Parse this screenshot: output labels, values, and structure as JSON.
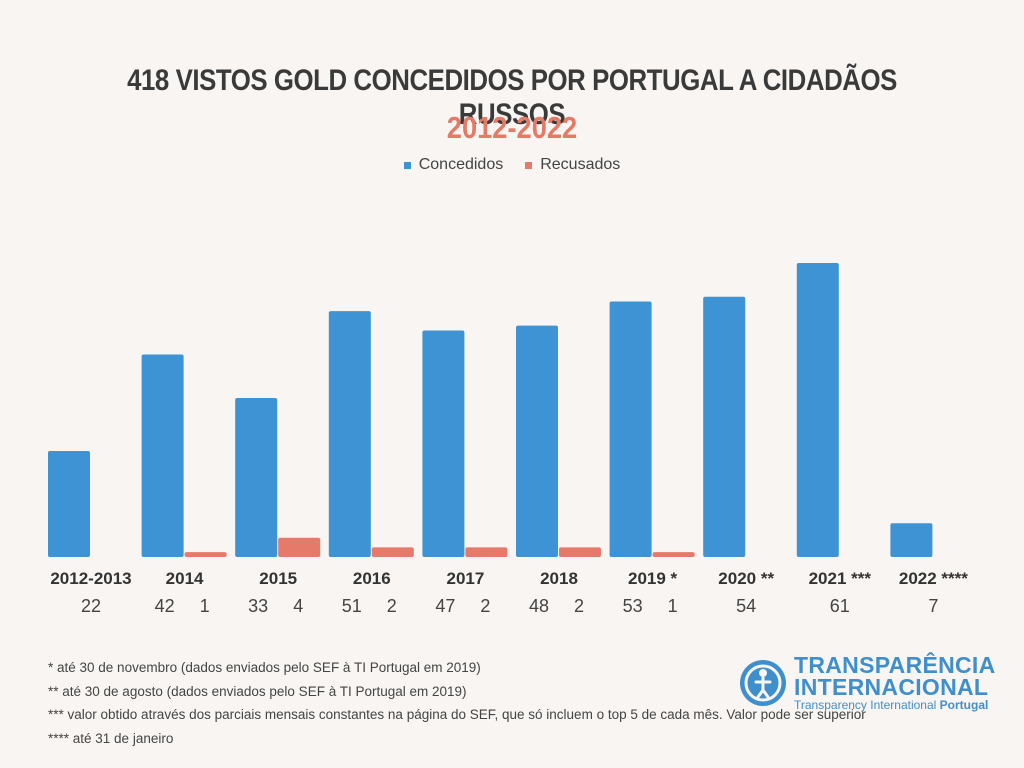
{
  "title": "418 VISTOS GOLD CONCEDIDOS POR PORTUGAL A CIDADÃOS RUSSOS",
  "subtitle": "2012-2022",
  "colors": {
    "concedidos": "#3d93d3",
    "recusados": "#e5796a",
    "title": "#3a3a3a",
    "subtitle": "#e67a66"
  },
  "legend": {
    "concedidos": "Concedidos",
    "recusados": "Recusados"
  },
  "chart_data": {
    "type": "bar",
    "categories": [
      "2012-2013",
      "2014",
      "2015",
      "2016",
      "2017",
      "2018",
      "2019 *",
      "2020 **",
      "2021 ***",
      "2022 ****"
    ],
    "series": [
      {
        "name": "Concedidos",
        "values": [
          22,
          42,
          33,
          51,
          47,
          48,
          53,
          54,
          61,
          7
        ]
      },
      {
        "name": "Recusados",
        "values": [
          null,
          1,
          4,
          2,
          2,
          2,
          1,
          null,
          null,
          null
        ]
      }
    ],
    "title": "418 VISTOS GOLD CONCEDIDOS POR PORTUGAL A CIDADÃOS RUSSOS",
    "subtitle": "2012-2022",
    "legend_position": "top-center",
    "grid": false
  },
  "notes": [
    "* até 30 de novembro (dados enviados pelo SEF à TI Portugal em 2019)",
    "** até 30 de agosto (dados enviados pelo SEF à TI Portugal em 2019)",
    "*** valor obtido através dos parciais mensais constantes na página do SEF, que só incluem o top 5 de cada mês. Valor pode ser superior",
    "**** até 31 de janeiro"
  ],
  "logo": {
    "line1": "TRANSPARÊNCIA",
    "line2": "INTERNACIONAL",
    "line3a": "Transparency International",
    "line3b": "Portugal",
    "icon": "globe-person-icon"
  }
}
